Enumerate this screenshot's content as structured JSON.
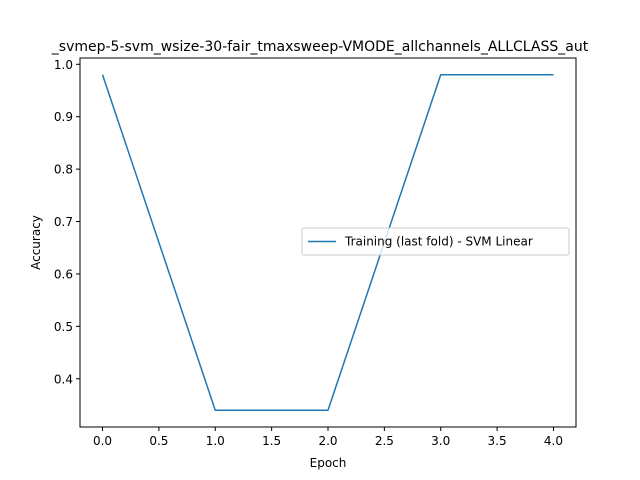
{
  "chart_data": {
    "type": "line",
    "title": "_svmep-5-svm_wsize-30-fair_tmaxsweep-VMODE_allchannels_ALLCLASS_aut",
    "xlabel": "Epoch",
    "ylabel": "Accuracy",
    "xlim": [
      -0.2,
      4.2
    ],
    "ylim": [
      0.308,
      1.012
    ],
    "xticks": [
      0.0,
      0.5,
      1.0,
      1.5,
      2.0,
      2.5,
      3.0,
      3.5,
      4.0
    ],
    "xtick_labels": [
      "0.0",
      "0.5",
      "1.0",
      "1.5",
      "2.0",
      "2.5",
      "3.0",
      "3.5",
      "4.0"
    ],
    "yticks": [
      0.4,
      0.5,
      0.6,
      0.7,
      0.8,
      0.9,
      1.0
    ],
    "ytick_labels": [
      "0.4",
      "0.5",
      "0.6",
      "0.7",
      "0.8",
      "0.9",
      "1.0"
    ],
    "grid": false,
    "legend_position": "center-right",
    "series": [
      {
        "name": "Training (last fold) - SVM Linear",
        "color": "#1f77b4",
        "x": [
          0,
          1,
          2,
          3,
          4
        ],
        "y": [
          0.98,
          0.34,
          0.34,
          0.98,
          0.98
        ]
      }
    ]
  }
}
